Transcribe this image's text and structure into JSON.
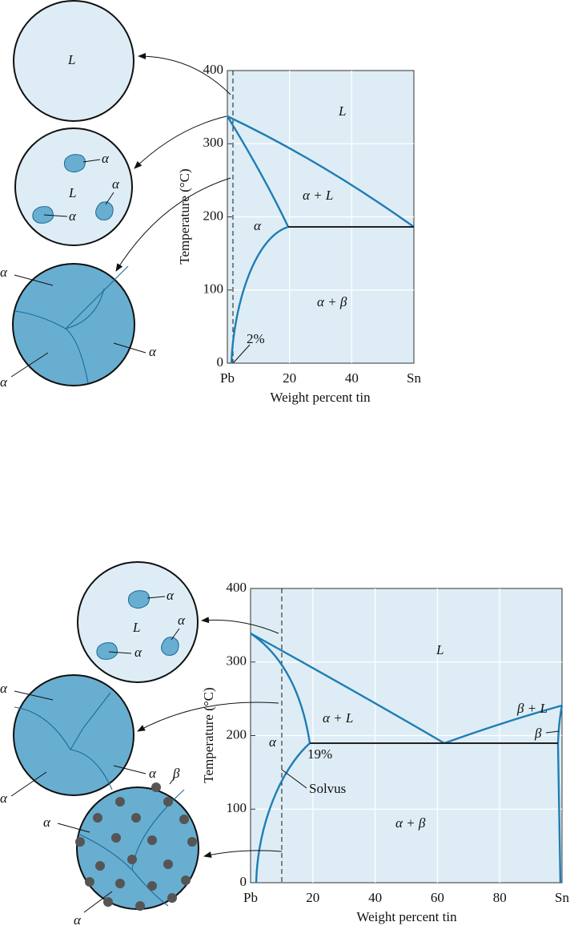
{
  "diagrams": [
    {
      "microstructures": [
        {
          "labels": [
            "L"
          ]
        },
        {
          "labels": [
            "α",
            "α",
            "L",
            "α"
          ]
        },
        {
          "labels": [
            "α",
            "α",
            "α"
          ]
        }
      ],
      "regions": [
        "L",
        "α + L",
        "α",
        "α + β"
      ],
      "composition_label": "2%",
      "yticks": [
        400,
        300,
        200,
        100,
        0
      ],
      "xticks": [
        "Pb",
        "20",
        "40",
        "Sn"
      ],
      "y_label": "Temperature (°C)",
      "x_label": "Weight percent tin"
    },
    {
      "microstructures": [
        {
          "labels": [
            "α",
            "L",
            "α",
            "α"
          ]
        },
        {
          "labels": [
            "α",
            "α",
            "α"
          ]
        },
        {
          "labels": [
            "β",
            "α",
            "α"
          ]
        }
      ],
      "regions": [
        "L",
        "α + L",
        "β + L",
        "β",
        "α",
        "α + β"
      ],
      "composition_label": "19%",
      "solvus_label": "Solvus",
      "yticks": [
        400,
        300,
        200,
        100,
        0
      ],
      "xticks": [
        "Pb",
        "20",
        "40",
        "60",
        "80",
        "Sn"
      ],
      "y_label": "Temperature (°C)",
      "x_label": "Weight percent tin"
    }
  ]
}
